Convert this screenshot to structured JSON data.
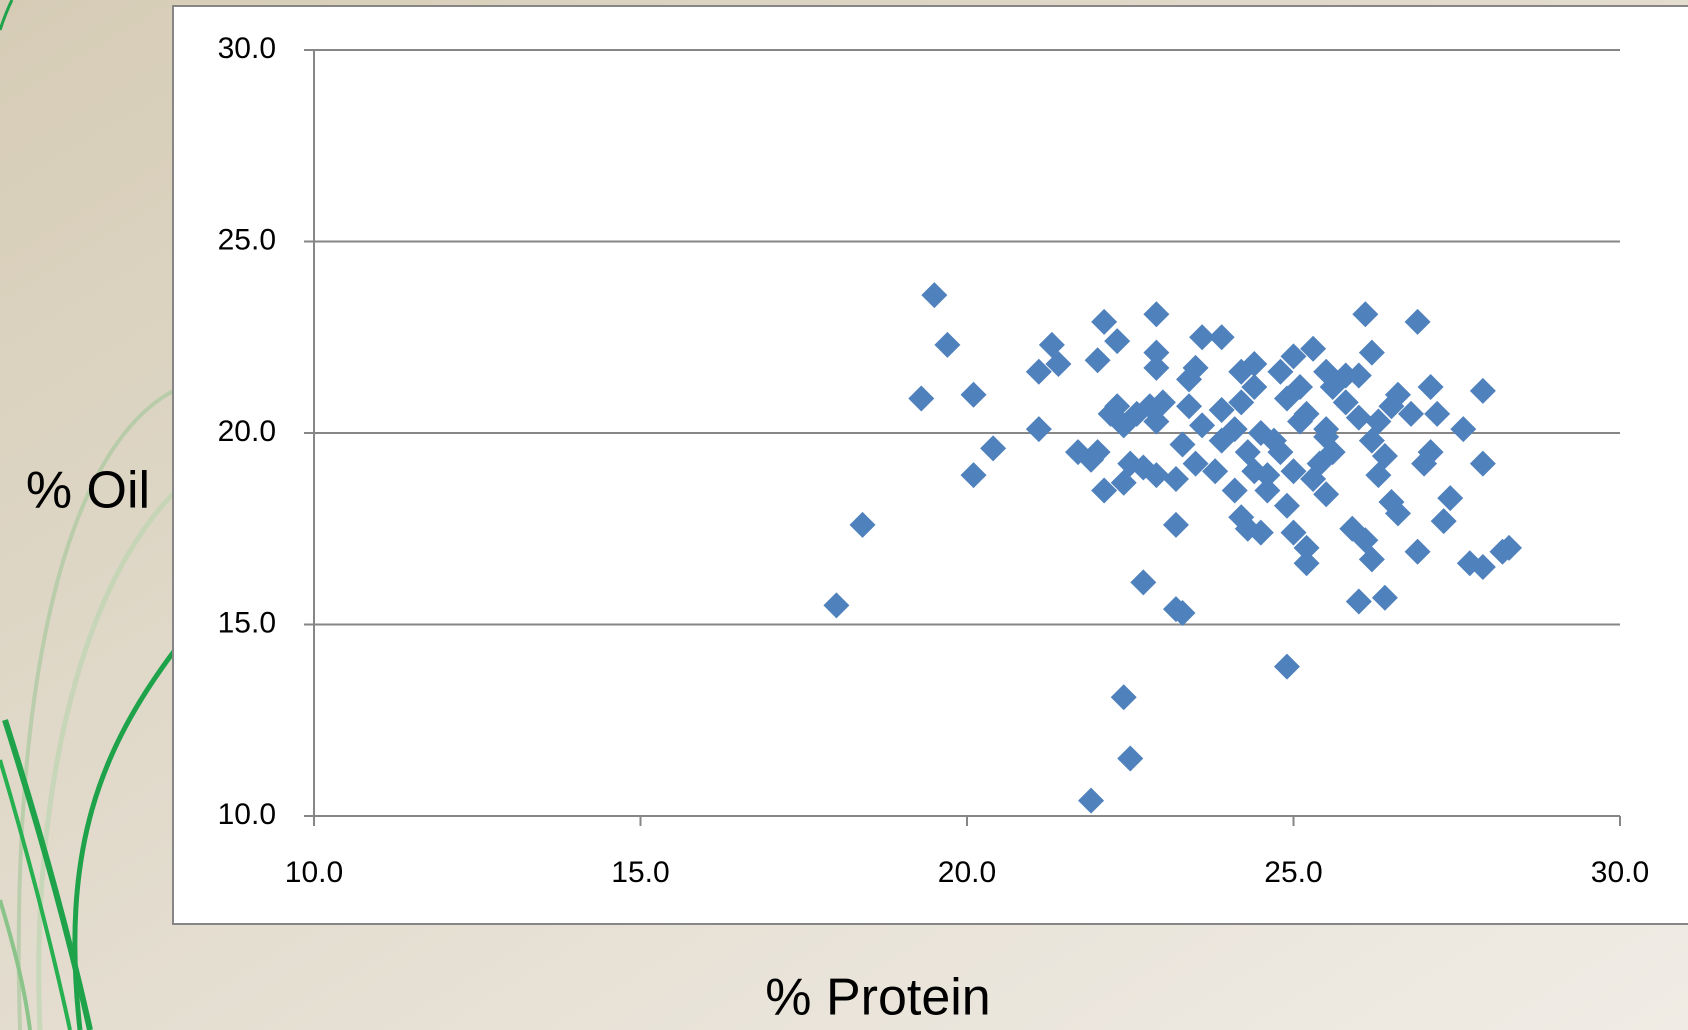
{
  "chart_data": {
    "type": "scatter",
    "xlabel": "% Protein",
    "ylabel": "% Oil",
    "color": "#4f81bd",
    "grid": true,
    "xlim": [
      10,
      30
    ],
    "ylim": [
      10,
      30
    ],
    "xticks": [
      {
        "value": 10,
        "label": "10.0"
      },
      {
        "value": 15,
        "label": "15.0"
      },
      {
        "value": 20,
        "label": "20.0"
      },
      {
        "value": 25,
        "label": "25.0"
      },
      {
        "value": 30,
        "label": "30.0"
      }
    ],
    "yticks": [
      {
        "value": 10,
        "label": "10.0"
      },
      {
        "value": 15,
        "label": "15.0"
      },
      {
        "value": 20,
        "label": "20.0"
      },
      {
        "value": 25,
        "label": "25.0"
      },
      {
        "value": 30,
        "label": "30.0"
      }
    ],
    "x": [
      19.5,
      19.7,
      19.3,
      20.1,
      20.1,
      20.4,
      21.1,
      18.4,
      18.0,
      21.3,
      21.1,
      21.4,
      21.7,
      22.0,
      21.9,
      22.0,
      22.1,
      22.3,
      22.9,
      22.9,
      22.9,
      22.2,
      22.3,
      22.4,
      22.1,
      22.4,
      22.5,
      22.7,
      22.8,
      23.0,
      22.9,
      23.2,
      22.9,
      23.2,
      22.7,
      23.2,
      23.3,
      22.4,
      22.5,
      21.9,
      23.6,
      23.9,
      23.5,
      23.4,
      23.4,
      23.3,
      23.5,
      23.8,
      23.9,
      24.1,
      24.2,
      24.4,
      24.3,
      24.1,
      24.2,
      24.3,
      24.5,
      24.6,
      24.8,
      24.8,
      25.0,
      25.1,
      25.1,
      24.9,
      25.0,
      25.2,
      25.2,
      24.9,
      25.3,
      25.5,
      25.6,
      25.5,
      25.4,
      25.5,
      25.9,
      26.1,
      26.2,
      26.0,
      26.4,
      26.1,
      26.2,
      26.0,
      26.3,
      26.2,
      26.3,
      26.5,
      26.6,
      26.5,
      26.8,
      26.9,
      27.1,
      27.2,
      27.1,
      27.0,
      27.4,
      27.3,
      26.9,
      27.6,
      27.9,
      27.9,
      27.7,
      27.9,
      28.2,
      28.3,
      24.5,
      24.7,
      25.2,
      25.5,
      24.4,
      25.0,
      25.8,
      26.0,
      24.2,
      24.9,
      25.6,
      24.6,
      25.3,
      23.9,
      26.4,
      25.8,
      24.4,
      23.6,
      22.6,
      26.6
    ],
    "series": [
      {
        "name": "% Oil",
        "color": "#4f81bd",
        "values": [
          23.6,
          22.3,
          20.9,
          21.0,
          18.9,
          19.6,
          20.1,
          17.6,
          15.5,
          22.3,
          21.6,
          21.8,
          19.5,
          19.5,
          19.3,
          21.9,
          22.9,
          22.4,
          23.1,
          22.1,
          21.7,
          20.5,
          20.7,
          20.2,
          18.5,
          18.7,
          19.2,
          19.1,
          20.7,
          20.8,
          20.3,
          18.8,
          18.9,
          17.6,
          16.1,
          15.4,
          15.3,
          13.1,
          11.5,
          10.4,
          22.5,
          22.5,
          21.7,
          21.4,
          20.7,
          19.7,
          19.2,
          19.0,
          20.6,
          20.1,
          21.6,
          21.2,
          19.5,
          18.5,
          17.8,
          17.5,
          17.4,
          18.9,
          19.5,
          21.6,
          22.0,
          21.2,
          20.3,
          18.1,
          17.4,
          17.0,
          16.6,
          13.9,
          22.2,
          21.6,
          21.2,
          20.1,
          19.2,
          18.4,
          17.5,
          17.2,
          16.7,
          15.6,
          15.7,
          23.1,
          22.1,
          21.5,
          20.3,
          19.8,
          18.9,
          18.2,
          17.9,
          20.7,
          20.5,
          22.9,
          21.2,
          20.5,
          19.5,
          19.2,
          18.3,
          17.7,
          16.9,
          20.1,
          21.1,
          19.2,
          16.6,
          16.5,
          16.9,
          17.0,
          20.0,
          19.8,
          20.5,
          19.9,
          19.0,
          19.0,
          20.8,
          20.4,
          20.8,
          20.9,
          19.5,
          18.5,
          18.8,
          19.8,
          19.4,
          21.5,
          21.8,
          20.2,
          20.5,
          21.0
        ]
      }
    ]
  }
}
